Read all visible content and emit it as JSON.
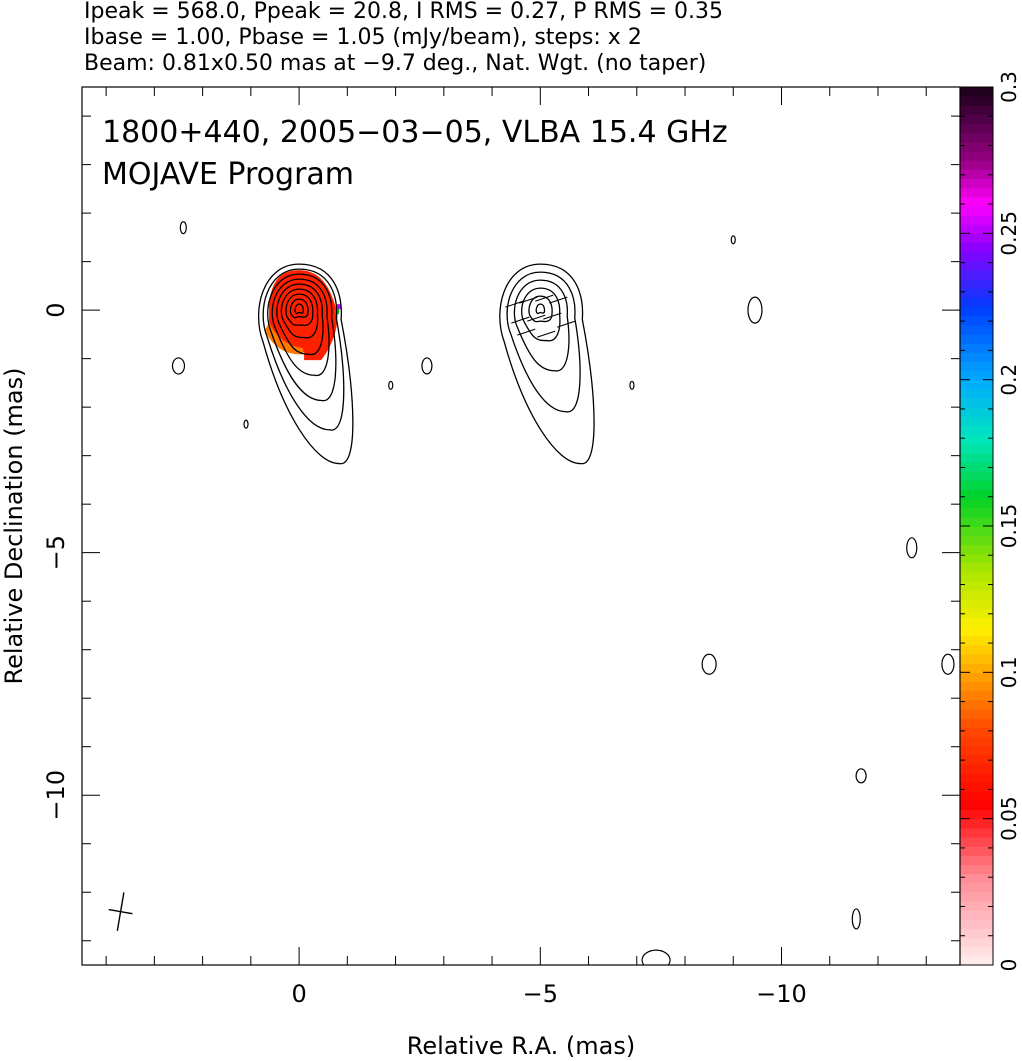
{
  "header": {
    "line1": "Ipeak = 568.0, Ppeak = 20.8, I RMS = 0.27, P RMS = 0.35",
    "line2": "Ibase = 1.00, Pbase = 1.05 (mJy/beam), steps: x 2",
    "line3": "Beam: 0.81x0.50 mas at −9.7 deg., Nat. Wgt. (no taper)"
  },
  "chart_data": {
    "type": "heatmap",
    "title_line1": "1800+440, 2005−03−05, VLBA 15.4 GHz",
    "title_line2": "MOJAVE Program",
    "xlabel": "Relative R.A. (mas)",
    "ylabel": "Relative Declination (mas)",
    "xlim": [
      4.5,
      -13.7
    ],
    "ylim": [
      -13.5,
      4.6
    ],
    "x_ticks": [
      0,
      -5,
      -10
    ],
    "x_tick_labels": [
      "0",
      "−5",
      "−10"
    ],
    "y_ticks": [
      0,
      -5,
      -10
    ],
    "y_tick_labels": [
      "0",
      "−5",
      "−10"
    ],
    "colorbar": {
      "range": [
        0,
        0.3
      ],
      "ticks": [
        0,
        0.05,
        0.1,
        0.15,
        0.2,
        0.25,
        0.3
      ],
      "tick_labels": [
        "0",
        "0.05",
        "0.1",
        "0.15",
        "0.2",
        "0.25",
        "0.3"
      ]
    },
    "components": [
      {
        "x": 0.0,
        "y": 0.0,
        "contour_levels": 9,
        "polarized": true,
        "fractional_pol": 0.05
      },
      {
        "x": -5.0,
        "y": 0.0,
        "contour_levels": 6,
        "polarized": false
      }
    ],
    "beam": {
      "major_mas": 0.81,
      "minor_mas": 0.5,
      "pa_deg": -9.7
    }
  },
  "colors": {
    "contour": "#000000",
    "pol_fill": "#ff2000",
    "background": "#ffffff"
  }
}
